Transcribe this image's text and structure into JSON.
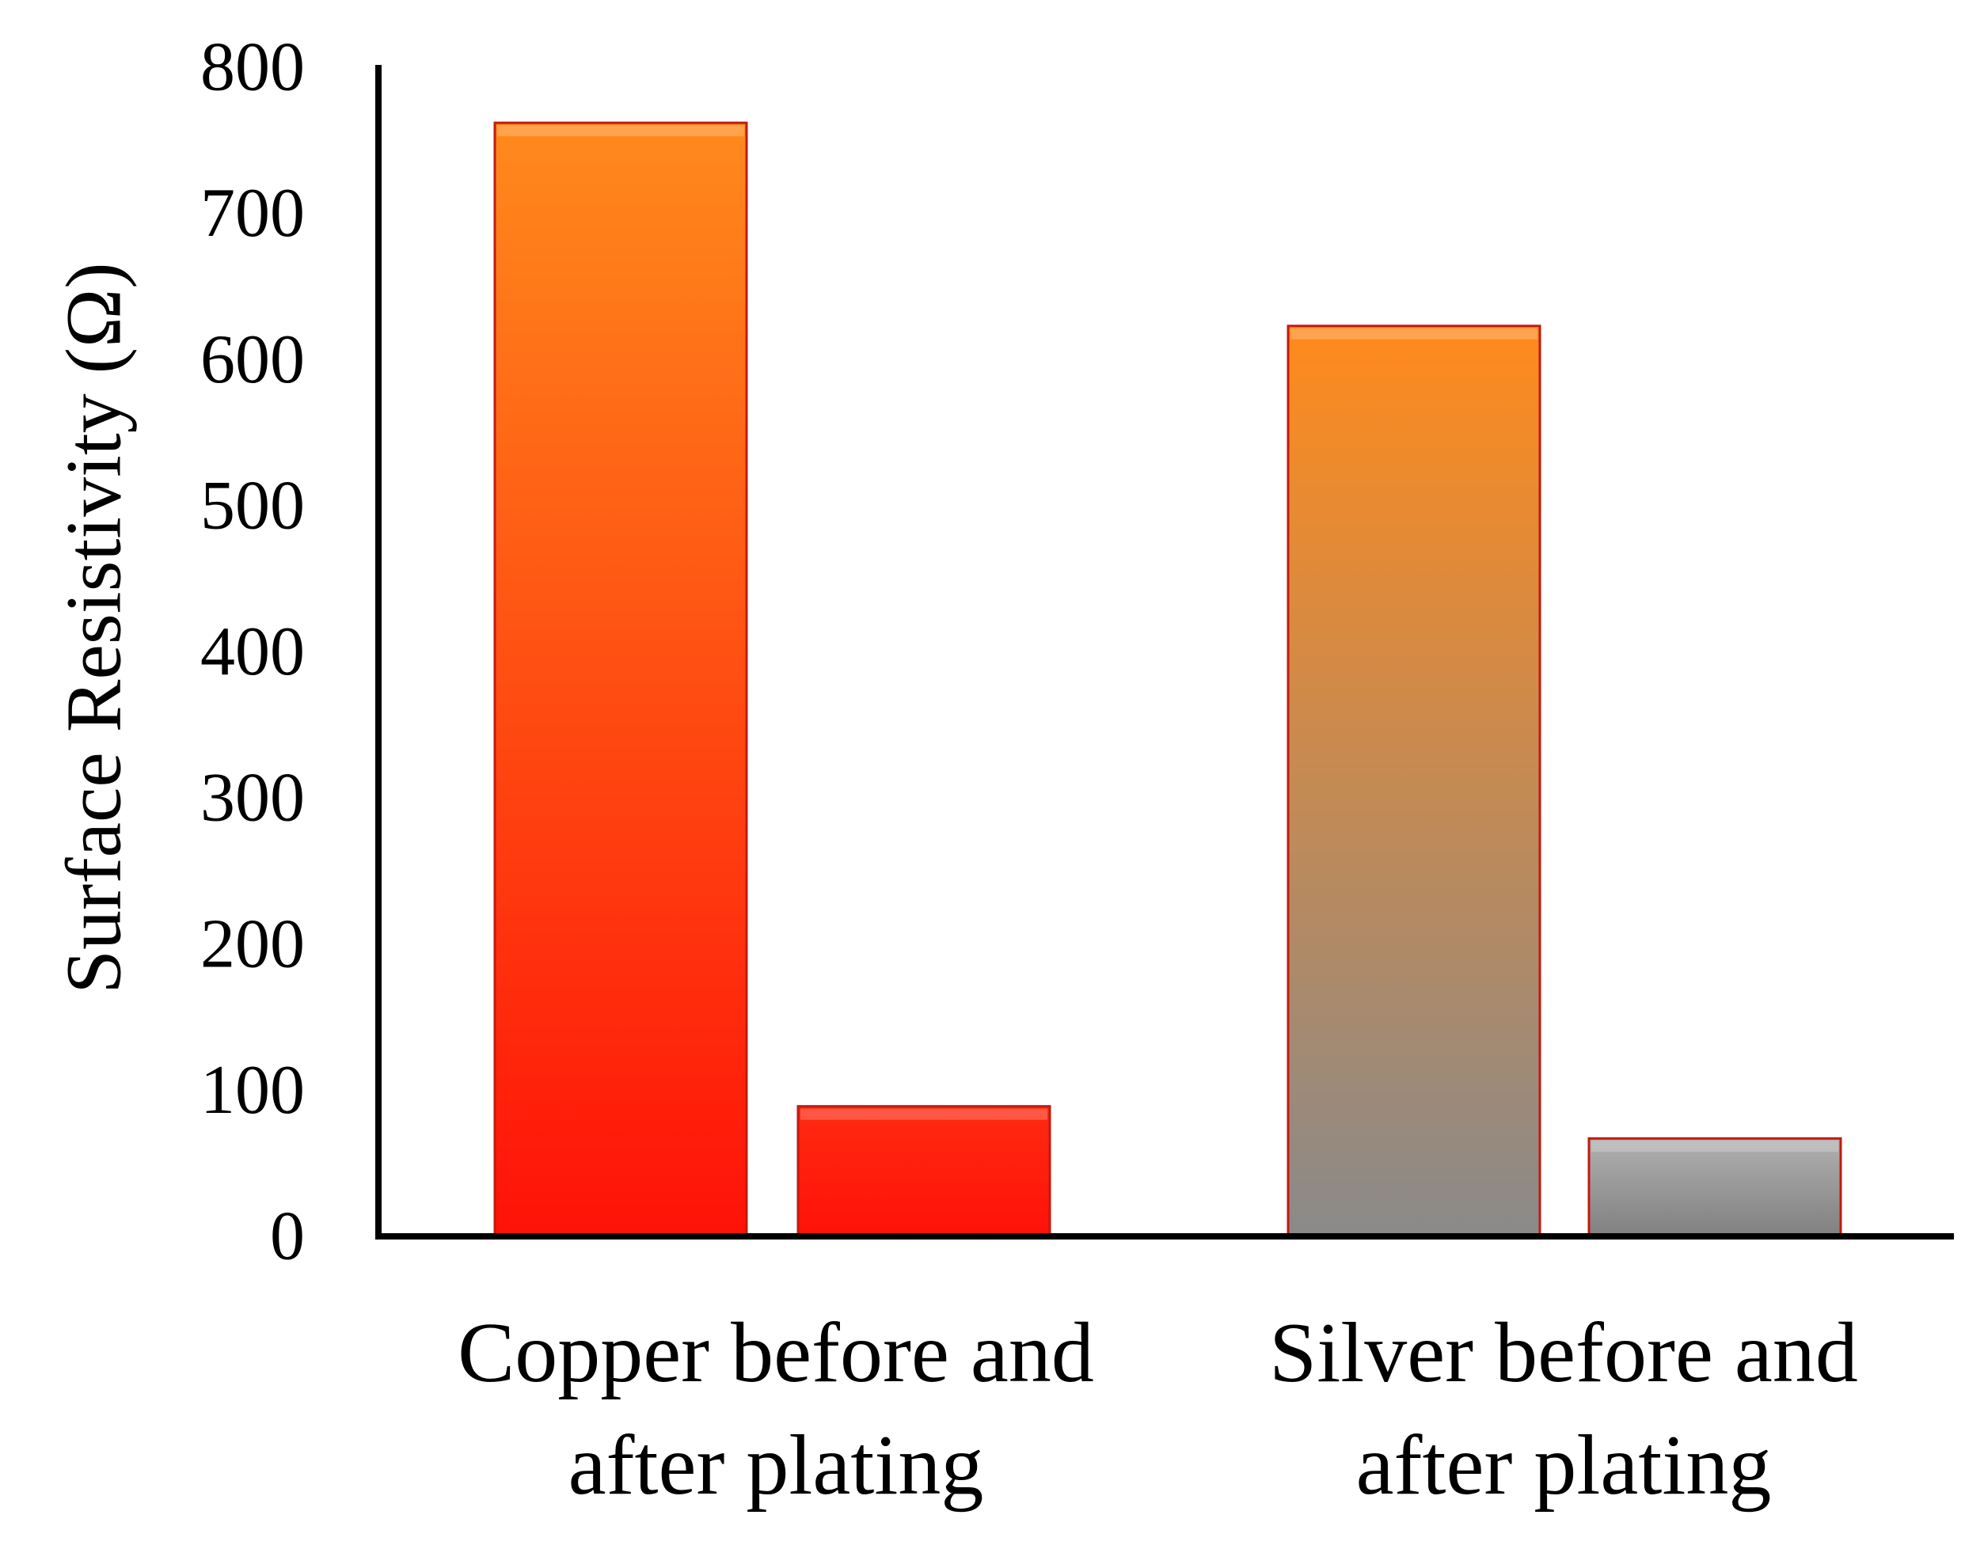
{
  "chart_data": {
    "type": "bar",
    "title": "",
    "ylabel": "Surface Resistivity (Ω)",
    "xlabel": "",
    "ylim": [
      0,
      800
    ],
    "yticks": [
      0,
      100,
      200,
      300,
      400,
      500,
      600,
      700,
      800
    ],
    "grid": false,
    "legend": "none",
    "groups": [
      {
        "label_lines": [
          "Copper before and",
          "after plating"
        ],
        "bars": [
          {
            "name": "Copper before plating",
            "value": 762,
            "color_top": "#ff8a1c",
            "color_bottom": "#ff1208"
          },
          {
            "name": "Copper after plating",
            "value": 89,
            "color_top": "#ff2a10",
            "color_bottom": "#ff1208"
          }
        ]
      },
      {
        "label_lines": [
          "Silver before and",
          "after plating"
        ],
        "bars": [
          {
            "name": "Silver before plating",
            "value": 623,
            "color_top": "#ff8a1c",
            "color_bottom": "#8a8a8a"
          },
          {
            "name": "Silver after plating",
            "value": 67,
            "color_top": "#b0b0b0",
            "color_bottom": "#808080"
          }
        ]
      }
    ]
  },
  "colors": {
    "axis": "#000000",
    "bar_outline": "#c21a10"
  }
}
